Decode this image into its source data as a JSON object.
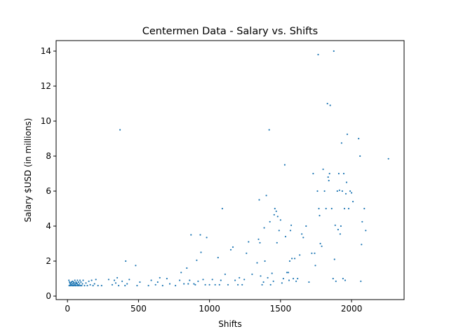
{
  "chart_data": {
    "type": "scatter",
    "title": "Centermen Data - Salary vs. Shifts",
    "xlabel": "Shifts",
    "ylabel": "Salary $USD (in millions)",
    "xlim": [
      -80,
      2370
    ],
    "ylim": [
      -0.2,
      14.6
    ],
    "xticks": [
      0,
      500,
      1000,
      1500,
      2000
    ],
    "yticks": [
      0,
      2,
      4,
      6,
      8,
      10,
      12,
      14
    ],
    "grid": false,
    "marker_color": "#1f77b4",
    "points": [
      [
        10,
        0.9
      ],
      [
        12,
        0.6
      ],
      [
        15,
        0.8
      ],
      [
        18,
        0.7
      ],
      [
        20,
        0.6
      ],
      [
        22,
        0.75
      ],
      [
        25,
        0.65
      ],
      [
        28,
        0.8
      ],
      [
        30,
        0.6
      ],
      [
        32,
        0.7
      ],
      [
        35,
        0.85
      ],
      [
        38,
        0.6
      ],
      [
        40,
        0.7
      ],
      [
        42,
        0.8
      ],
      [
        45,
        0.6
      ],
      [
        48,
        0.75
      ],
      [
        50,
        0.65
      ],
      [
        52,
        0.9
      ],
      [
        55,
        0.6
      ],
      [
        58,
        0.7
      ],
      [
        60,
        0.8
      ],
      [
        62,
        0.6
      ],
      [
        65,
        0.75
      ],
      [
        68,
        0.7
      ],
      [
        70,
        0.9
      ],
      [
        72,
        0.6
      ],
      [
        75,
        0.65
      ],
      [
        78,
        0.8
      ],
      [
        80,
        0.6
      ],
      [
        85,
        0.7
      ],
      [
        88,
        0.9
      ],
      [
        90,
        0.6
      ],
      [
        95,
        0.8
      ],
      [
        100,
        0.6
      ],
      [
        105,
        0.7
      ],
      [
        110,
        0.9
      ],
      [
        120,
        0.6
      ],
      [
        130,
        0.75
      ],
      [
        140,
        0.6
      ],
      [
        150,
        0.85
      ],
      [
        160,
        0.65
      ],
      [
        170,
        0.9
      ],
      [
        180,
        0.6
      ],
      [
        190,
        0.7
      ],
      [
        200,
        0.95
      ],
      [
        215,
        0.6
      ],
      [
        240,
        0.6
      ],
      [
        290,
        0.95
      ],
      [
        315,
        0.65
      ],
      [
        330,
        0.9
      ],
      [
        340,
        0.75
      ],
      [
        350,
        1.05
      ],
      [
        360,
        0.6
      ],
      [
        370,
        9.5
      ],
      [
        385,
        0.85
      ],
      [
        405,
        0.6
      ],
      [
        410,
        2.0
      ],
      [
        420,
        0.7
      ],
      [
        435,
        0.95
      ],
      [
        480,
        1.75
      ],
      [
        490,
        0.6
      ],
      [
        510,
        0.8
      ],
      [
        570,
        0.6
      ],
      [
        590,
        0.9
      ],
      [
        620,
        0.65
      ],
      [
        635,
        0.8
      ],
      [
        650,
        1.05
      ],
      [
        670,
        0.6
      ],
      [
        700,
        1.0
      ],
      [
        720,
        0.7
      ],
      [
        760,
        0.6
      ],
      [
        790,
        0.9
      ],
      [
        800,
        1.35
      ],
      [
        820,
        0.7
      ],
      [
        840,
        1.6
      ],
      [
        850,
        0.7
      ],
      [
        860,
        0.9
      ],
      [
        870,
        3.5
      ],
      [
        890,
        0.7
      ],
      [
        900,
        0.65
      ],
      [
        910,
        2.05
      ],
      [
        920,
        0.85
      ],
      [
        935,
        3.5
      ],
      [
        940,
        2.5
      ],
      [
        955,
        0.95
      ],
      [
        970,
        0.65
      ],
      [
        980,
        3.35
      ],
      [
        1000,
        0.65
      ],
      [
        1020,
        0.95
      ],
      [
        1040,
        0.65
      ],
      [
        1060,
        2.2
      ],
      [
        1070,
        0.65
      ],
      [
        1080,
        0.9
      ],
      [
        1090,
        5.0
      ],
      [
        1110,
        1.25
      ],
      [
        1130,
        0.65
      ],
      [
        1150,
        2.65
      ],
      [
        1165,
        2.8
      ],
      [
        1180,
        0.9
      ],
      [
        1200,
        0.65
      ],
      [
        1210,
        1.05
      ],
      [
        1230,
        0.65
      ],
      [
        1245,
        0.95
      ],
      [
        1260,
        2.45
      ],
      [
        1275,
        3.1
      ],
      [
        1300,
        1.25
      ],
      [
        1335,
        1.9
      ],
      [
        1345,
        3.25
      ],
      [
        1350,
        5.5
      ],
      [
        1355,
        3.05
      ],
      [
        1360,
        1.15
      ],
      [
        1370,
        0.65
      ],
      [
        1380,
        0.8
      ],
      [
        1385,
        3.9
      ],
      [
        1390,
        2.0
      ],
      [
        1400,
        5.75
      ],
      [
        1410,
        1.05
      ],
      [
        1420,
        9.5
      ],
      [
        1425,
        4.25
      ],
      [
        1430,
        0.65
      ],
      [
        1440,
        1.3
      ],
      [
        1450,
        0.85
      ],
      [
        1455,
        4.65
      ],
      [
        1460,
        5.0
      ],
      [
        1470,
        4.85
      ],
      [
        1475,
        3.05
      ],
      [
        1480,
        4.55
      ],
      [
        1490,
        3.75
      ],
      [
        1500,
        4.35
      ],
      [
        1510,
        0.75
      ],
      [
        1520,
        1.0
      ],
      [
        1530,
        7.5
      ],
      [
        1535,
        3.4
      ],
      [
        1545,
        1.35
      ],
      [
        1555,
        1.35
      ],
      [
        1560,
        0.9
      ],
      [
        1565,
        2.0
      ],
      [
        1570,
        3.75
      ],
      [
        1575,
        4.05
      ],
      [
        1580,
        2.15
      ],
      [
        1590,
        1.0
      ],
      [
        1600,
        2.15
      ],
      [
        1610,
        0.85
      ],
      [
        1620,
        1.0
      ],
      [
        1635,
        2.35
      ],
      [
        1650,
        3.55
      ],
      [
        1660,
        3.35
      ],
      [
        1680,
        4.0
      ],
      [
        1700,
        0.8
      ],
      [
        1720,
        2.45
      ],
      [
        1730,
        7.0
      ],
      [
        1740,
        2.45
      ],
      [
        1745,
        1.75
      ],
      [
        1760,
        6.0
      ],
      [
        1765,
        13.8
      ],
      [
        1770,
        5.0
      ],
      [
        1775,
        4.6
      ],
      [
        1780,
        3.0
      ],
      [
        1790,
        2.85
      ],
      [
        1800,
        7.25
      ],
      [
        1810,
        6.0
      ],
      [
        1820,
        5.0
      ],
      [
        1830,
        11.0
      ],
      [
        1835,
        6.8
      ],
      [
        1840,
        6.6
      ],
      [
        1845,
        7.0
      ],
      [
        1850,
        10.9
      ],
      [
        1860,
        5.0
      ],
      [
        1870,
        1.0
      ],
      [
        1875,
        14.0
      ],
      [
        1880,
        2.1
      ],
      [
        1885,
        4.05
      ],
      [
        1890,
        0.85
      ],
      [
        1900,
        6.0
      ],
      [
        1905,
        3.8
      ],
      [
        1910,
        7.0
      ],
      [
        1915,
        6.05
      ],
      [
        1920,
        3.55
      ],
      [
        1925,
        4.0
      ],
      [
        1930,
        8.75
      ],
      [
        1935,
        6.0
      ],
      [
        1940,
        1.0
      ],
      [
        1945,
        7.0
      ],
      [
        1950,
        5.0
      ],
      [
        1955,
        0.9
      ],
      [
        1960,
        5.85
      ],
      [
        1965,
        6.5
      ],
      [
        1970,
        9.25
      ],
      [
        1980,
        5.0
      ],
      [
        1990,
        6.0
      ],
      [
        2000,
        5.9
      ],
      [
        2010,
        5.4
      ],
      [
        2050,
        9.0
      ],
      [
        2060,
        8.0
      ],
      [
        2065,
        0.85
      ],
      [
        2070,
        2.95
      ],
      [
        2075,
        4.25
      ],
      [
        2090,
        5.0
      ],
      [
        2100,
        3.75
      ],
      [
        2260,
        7.85
      ]
    ]
  }
}
